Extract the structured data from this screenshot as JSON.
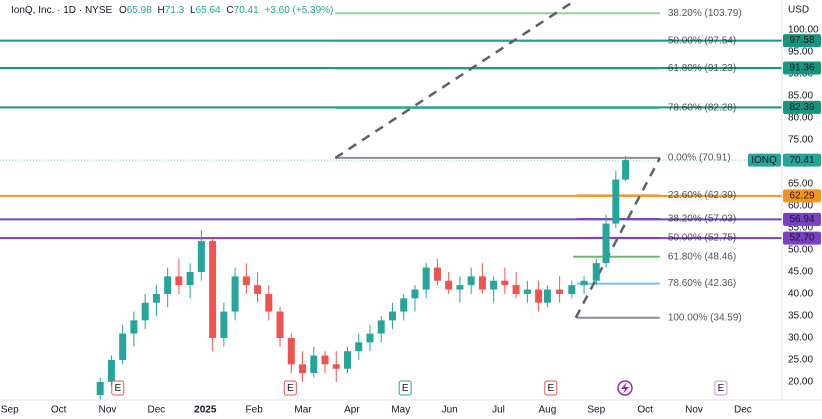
{
  "header": {
    "symbol": "IonQ, Inc.",
    "interval": "1D",
    "exchange": "NYSE",
    "open": 65.98,
    "high": 71.3,
    "low": 65.64,
    "close": 70.41,
    "change": "+3.60 (+5.39%)"
  },
  "chart_data": {
    "type": "candlestick",
    "currency": "USD",
    "x": [
      1.85,
      2.08,
      2.31,
      2.54,
      2.77,
      3.0,
      3.23,
      3.46,
      3.69,
      3.92,
      4.15,
      4.38,
      4.61,
      4.84,
      5.07,
      5.3,
      5.53,
      5.76,
      5.99,
      6.22,
      6.45,
      6.68,
      6.91,
      7.14,
      7.37,
      7.6,
      7.83,
      8.06,
      8.29,
      8.52,
      8.75,
      8.98,
      9.21,
      9.44,
      9.67,
      9.9,
      10.13,
      10.36,
      10.59,
      10.82,
      11.0,
      11.25,
      11.5,
      11.75,
      12.0,
      12.2,
      12.4,
      12.6
    ],
    "open": [
      17,
      20,
      25,
      31,
      34,
      38,
      40,
      44,
      42,
      45,
      52,
      30,
      36,
      44,
      42,
      40,
      36,
      30,
      24,
      22,
      26,
      24,
      23,
      27,
      29,
      31,
      34,
      36,
      39,
      41,
      46,
      43,
      41,
      42,
      44,
      41,
      43,
      42,
      40,
      41,
      38,
      41,
      40,
      42,
      43,
      47,
      56,
      65.98
    ],
    "high": [
      21,
      26,
      33,
      36,
      40,
      42,
      46,
      48,
      47,
      54.5,
      53,
      38,
      46,
      47,
      45,
      42,
      37,
      31,
      27,
      28,
      27,
      27,
      28,
      31,
      33,
      35,
      38,
      40,
      42,
      47,
      48,
      45,
      44,
      46,
      47,
      44,
      46,
      45,
      43,
      43,
      42,
      44,
      43,
      44,
      48,
      58,
      68,
      71.3
    ],
    "low": [
      16,
      19,
      24,
      28,
      32,
      35,
      37,
      40,
      39,
      43,
      27,
      28,
      34,
      40,
      38,
      34,
      28,
      22,
      20,
      21,
      22,
      20,
      22,
      25,
      27,
      29,
      32,
      34,
      36,
      39,
      42,
      40,
      38,
      40,
      40,
      38,
      40,
      39,
      38,
      36,
      37,
      38,
      39,
      40,
      42,
      46,
      55,
      65.64
    ],
    "close": [
      20,
      25,
      31,
      34,
      38,
      40,
      44,
      42,
      45,
      52,
      30,
      36,
      44,
      42,
      40,
      36,
      30,
      24,
      22,
      26,
      24,
      23,
      27,
      29,
      31,
      34,
      36,
      39,
      41,
      46,
      43,
      41,
      42,
      44,
      41,
      43,
      42,
      40,
      41,
      38,
      41,
      40,
      42,
      43,
      47,
      56,
      66,
      70.41
    ],
    "up_color": "#26a69a",
    "down_color": "#ef5350",
    "xlim": [
      -0.2,
      15.8
    ],
    "ylim": [
      15.9,
      106.8
    ],
    "xticks": [
      {
        "value": 0,
        "label": "Sep"
      },
      {
        "value": 1,
        "label": "Oct"
      },
      {
        "value": 2,
        "label": "Nov"
      },
      {
        "value": 3,
        "label": "Dec"
      },
      {
        "value": 4,
        "label": "2025"
      },
      {
        "value": 5,
        "label": "Feb"
      },
      {
        "value": 6,
        "label": "Mar"
      },
      {
        "value": 7,
        "label": "Apr"
      },
      {
        "value": 8,
        "label": "May"
      },
      {
        "value": 9,
        "label": "Jun"
      },
      {
        "value": 10,
        "label": "Jul"
      },
      {
        "value": 11,
        "label": "Aug"
      },
      {
        "value": 12,
        "label": "Sep"
      },
      {
        "value": 13,
        "label": "Oct"
      },
      {
        "value": 14,
        "label": "Nov"
      },
      {
        "value": 15,
        "label": "Dec"
      }
    ],
    "yticks": [
      {
        "value": 100,
        "label": "100.00"
      },
      {
        "value": 95,
        "label": "95.00"
      },
      {
        "value": 90,
        "label": "90.00"
      },
      {
        "value": 85,
        "label": "85.00"
      },
      {
        "value": 80,
        "label": "80.00"
      },
      {
        "value": 75,
        "label": "75.00"
      },
      {
        "value": 65,
        "label": "65.00"
      },
      {
        "value": 60,
        "label": "60.00"
      },
      {
        "value": 55,
        "label": "55.00"
      },
      {
        "value": 50,
        "label": "50.00"
      },
      {
        "value": 45,
        "label": "45.00"
      },
      {
        "value": 40,
        "label": "40.00"
      },
      {
        "value": 35,
        "label": "35.00"
      },
      {
        "value": 30,
        "label": "30.00"
      },
      {
        "value": 25,
        "label": "25.00"
      },
      {
        "value": 20,
        "label": "20.00"
      }
    ],
    "levels": [
      {
        "value": 97.58,
        "label": "97.58",
        "color": "#15967f"
      },
      {
        "value": 91.36,
        "label": "91.36",
        "color": "#15967f"
      },
      {
        "value": 82.39,
        "label": "82.39",
        "color": "#15967f"
      },
      {
        "value": 62.29,
        "label": "62.29",
        "color": "#f7931a"
      },
      {
        "value": 56.94,
        "label": "56.94",
        "color": "#7b3fc4"
      },
      {
        "value": 52.7,
        "label": "52.70",
        "color": "#7b3fc4"
      }
    ],
    "last_price": {
      "value": 70.41,
      "label": "70.41",
      "ticker": "IONQ",
      "color": "#26a69a"
    },
    "fib_levels": [
      {
        "value": 103.79,
        "label": "38.20% (103.79)",
        "start": 6.66,
        "color": "#81c784"
      },
      {
        "value": 97.54,
        "label": "50.00% (97.54)",
        "start": 6.66,
        "color": "#26a69a"
      },
      {
        "value": 91.23,
        "label": "61.80% (91.23)",
        "start": 6.66,
        "color": "#26a69a"
      },
      {
        "value": 82.28,
        "label": "78.60% (82.28)",
        "start": 6.66,
        "color": "#26a69a"
      },
      {
        "value": 70.91,
        "label": "0.00% (70.91)",
        "start": 6.66,
        "color": "#787b86"
      },
      {
        "value": 62.39,
        "label": "23.60% (62.39)",
        "start": 11.6,
        "color": "#f7931a"
      },
      {
        "value": 57.03,
        "label": "38.20% (57.03)",
        "start": 11.6,
        "color": "#7b3fc4"
      },
      {
        "value": 52.75,
        "label": "50.00% (52.75)",
        "start": 11.6,
        "color": "#7b3fc4"
      },
      {
        "value": 48.46,
        "label": "61.80% (48.46)",
        "start": 11.53,
        "color": "#4caf50"
      },
      {
        "value": 42.36,
        "label": "78.60% (42.36)",
        "start": 11.6,
        "color": "#64b5f6"
      },
      {
        "value": 34.59,
        "label": "100.00% (34.59)",
        "start": 11.6,
        "color": "#787b86"
      }
    ],
    "fib_end": 13.3,
    "trend_lines": [
      {
        "points": [
          [
            6.66,
            70.91
          ],
          [
            11.58,
            106.8
          ]
        ]
      },
      {
        "points": [
          [
            11.58,
            34.59
          ],
          [
            13.3,
            70.91
          ]
        ]
      }
    ],
    "events": [
      {
        "x": 2.21,
        "label": "E",
        "color": "#ef5350"
      },
      {
        "x": 5.74,
        "label": "E",
        "color": "#ef5350"
      },
      {
        "x": 8.09,
        "label": "E",
        "color": "#26a69a"
      },
      {
        "x": 11.07,
        "label": "E",
        "color": "#ef5350"
      },
      {
        "x": 14.55,
        "label": "E",
        "color": "#ce93d8"
      }
    ]
  }
}
